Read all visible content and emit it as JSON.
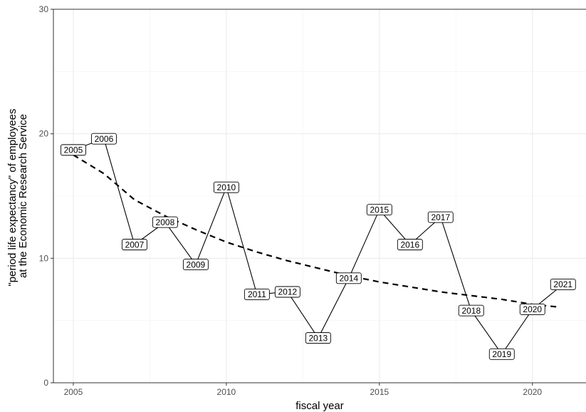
{
  "chart_data": {
    "type": "line",
    "xlabel": "fiscal year",
    "ylabel_lines": [
      "\"period life expectancy\" of employees",
      "at the Economic Research Service"
    ],
    "xlim": [
      2004.35,
      2021.75
    ],
    "ylim": [
      0,
      30
    ],
    "x_ticks": [
      2005,
      2010,
      2015,
      2020
    ],
    "x_tick_labels": [
      "2005",
      "2010",
      "2015",
      "2020"
    ],
    "y_ticks": [
      0,
      10,
      20,
      30
    ],
    "y_tick_labels": [
      "0",
      "10",
      "20",
      "30"
    ],
    "grid": true,
    "series": [
      {
        "x": [
          2005,
          2006,
          2007,
          2008,
          2009,
          2010,
          2011,
          2012,
          2013,
          2014,
          2015,
          2016,
          2017,
          2018,
          2019,
          2020,
          2021
        ],
        "y": [
          18.7,
          19.6,
          11.1,
          12.9,
          9.5,
          15.7,
          7.1,
          7.3,
          3.6,
          8.4,
          13.9,
          11.1,
          13.3,
          5.8,
          2.3,
          5.9,
          7.9
        ],
        "labels": [
          "2005",
          "2006",
          "2007",
          "2008",
          "2009",
          "2010",
          "2011",
          "2012",
          "2013",
          "2014",
          "2015",
          "2016",
          "2017",
          "2018",
          "2019",
          "2020",
          "2021"
        ]
      }
    ],
    "trend": {
      "style": "dashed",
      "x": [
        2005,
        2006,
        2007,
        2008,
        2009,
        2010,
        2011,
        2012,
        2013,
        2014,
        2015,
        2016,
        2017,
        2018,
        2019,
        2020,
        2020.8
      ],
      "y": [
        18.3,
        16.8,
        14.7,
        13.4,
        12.3,
        11.3,
        10.5,
        9.8,
        9.2,
        8.6,
        8.1,
        7.7,
        7.3,
        7.0,
        6.7,
        6.3,
        6.1
      ]
    }
  }
}
